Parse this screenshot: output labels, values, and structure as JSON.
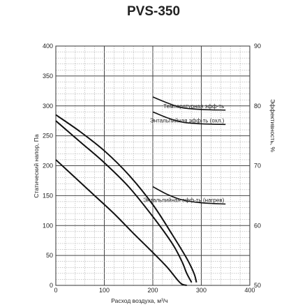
{
  "chart_data": {
    "type": "line",
    "title": "PVS-350",
    "xlabel": "Расход воздуха, м³/ч",
    "ylabel": "Статический напор, Па",
    "y2label": "Эффективность, %",
    "xlim": [
      0,
      400
    ],
    "ylim": [
      0,
      400
    ],
    "y2lim": [
      50,
      90
    ],
    "x_ticks": [
      0,
      100,
      200,
      300,
      400
    ],
    "y_ticks": [
      0,
      50,
      100,
      150,
      200,
      250,
      300,
      350,
      400
    ],
    "y2_ticks": [
      50,
      60,
      70,
      80,
      90
    ],
    "grid": "dotted",
    "pressure_curves": [
      {
        "x": [
          0,
          40,
          80,
          120,
          160,
          200,
          230,
          250,
          260,
          270
        ],
        "y": [
          210,
          180,
          150,
          120,
          87,
          55,
          30,
          10,
          2,
          0
        ]
      },
      {
        "x": [
          0,
          50,
          100,
          150,
          200,
          240,
          260,
          270,
          280
        ],
        "y": [
          275,
          240,
          205,
          165,
          115,
          70,
          40,
          20,
          5
        ]
      },
      {
        "x": [
          0,
          50,
          100,
          150,
          200,
          240,
          270,
          285,
          290
        ],
        "y": [
          285,
          257,
          225,
          185,
          135,
          85,
          45,
          20,
          5
        ]
      }
    ],
    "efficiency_curves": [
      {
        "label": "Температурная эфф-ть",
        "x": [
          200,
          230,
          260,
          300,
          350
        ],
        "y": [
          81.5,
          80.5,
          79.7,
          79.4,
          79.3
        ]
      },
      {
        "label": "Энтальпийная эфф-ть (охл.)",
        "x": [
          200,
          230,
          260,
          300,
          350
        ],
        "y": [
          79,
          78,
          77.3,
          77,
          76.9
        ]
      },
      {
        "label": "Энтальпийная эфф-ть (нагрев)",
        "x": [
          200,
          230,
          260,
          300,
          350
        ],
        "y": [
          66.5,
          65.2,
          64.3,
          63.8,
          63.6
        ]
      }
    ]
  }
}
